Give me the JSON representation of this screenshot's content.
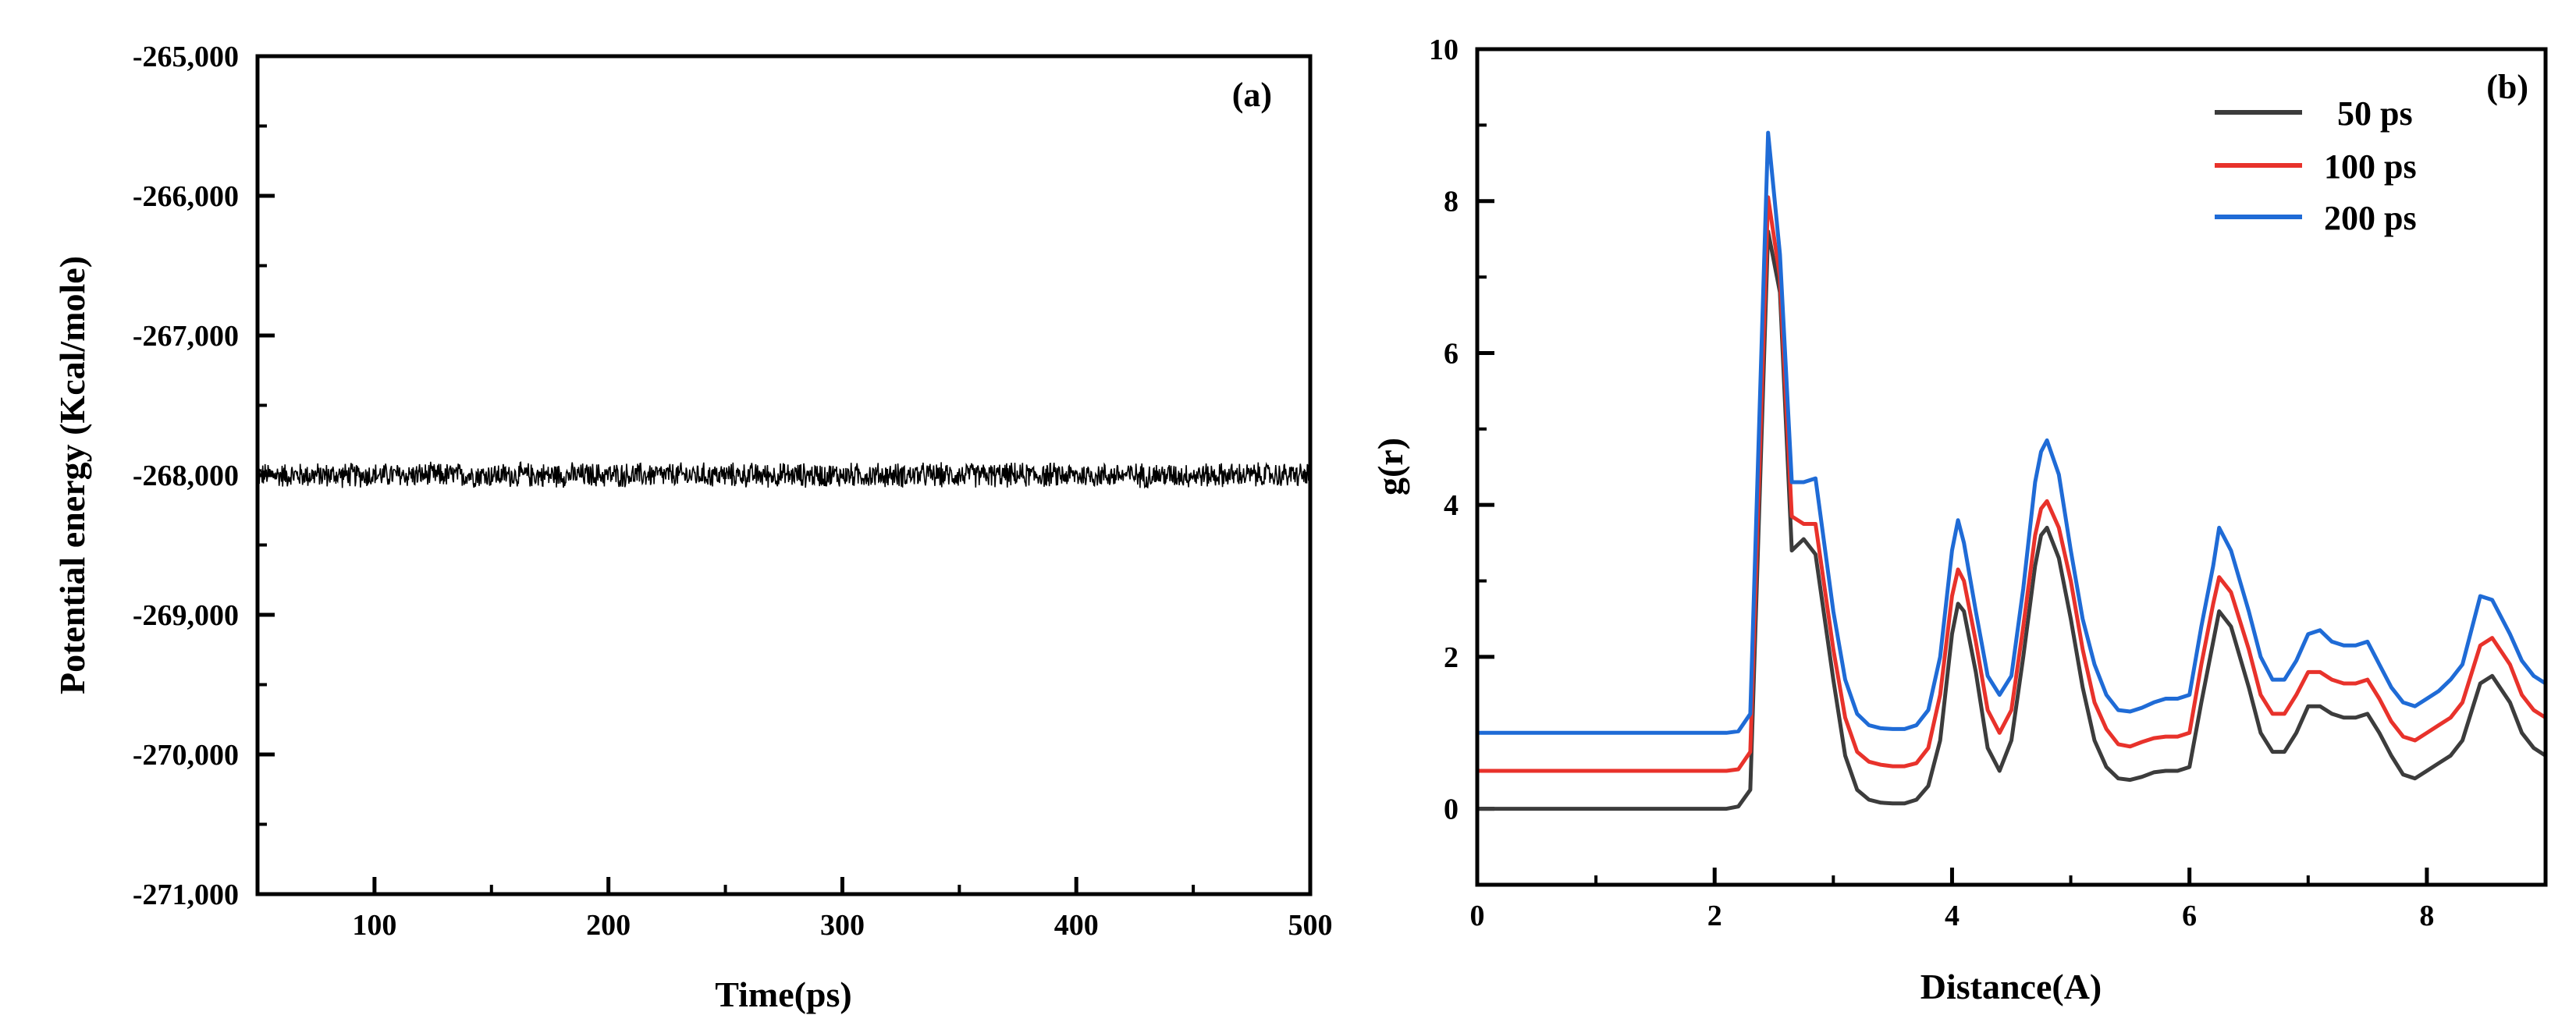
{
  "chart_data": [
    {
      "panel": "(a)",
      "type": "line",
      "xlabel": "Time(ps)",
      "ylabel": "Potential energy (Kcal/mole)",
      "xlim": [
        50,
        500
      ],
      "ylim": [
        -271000,
        -265000
      ],
      "xticks": [
        100,
        200,
        300,
        400,
        500
      ],
      "xtick_labels": [
        "100",
        "200",
        "300",
        "400",
        "500"
      ],
      "yticks": [
        -271000,
        -270000,
        -269000,
        -268000,
        -267000,
        -266000,
        -265000
      ],
      "ytick_labels": [
        "-271,000",
        "-270,000",
        "-269,000",
        "-268,000",
        "-267,000",
        "-266,000",
        "-265,000"
      ],
      "series": [
        {
          "name": "Potential energy",
          "color": "#000000",
          "mean": -268000,
          "fluctuation_amplitude": 100,
          "x_start": 50,
          "x_end": 500,
          "point_count": 1800
        }
      ]
    },
    {
      "panel": "(b)",
      "type": "line",
      "xlabel": "Distance(A)",
      "ylabel": "g(r)",
      "xlim": [
        0,
        9
      ],
      "ylim": [
        -1,
        10
      ],
      "xticks": [
        0,
        2,
        4,
        6,
        8
      ],
      "xtick_labels": [
        "0",
        "2",
        "4",
        "6",
        "8"
      ],
      "yticks": [
        0,
        2,
        4,
        6,
        8,
        10
      ],
      "ytick_labels": [
        "0",
        "2",
        "4",
        "6",
        "8",
        "10"
      ],
      "legend_position": "top-right",
      "x": [
        0,
        2.1,
        2.2,
        2.3,
        2.45,
        2.55,
        2.65,
        2.75,
        2.85,
        3.0,
        3.1,
        3.2,
        3.3,
        3.4,
        3.5,
        3.6,
        3.7,
        3.8,
        3.9,
        4.0,
        4.05,
        4.1,
        4.2,
        4.3,
        4.4,
        4.5,
        4.6,
        4.7,
        4.75,
        4.8,
        4.9,
        5.0,
        5.1,
        5.2,
        5.3,
        5.4,
        5.5,
        5.6,
        5.7,
        5.8,
        5.9,
        6.0,
        6.1,
        6.2,
        6.25,
        6.35,
        6.5,
        6.6,
        6.7,
        6.8,
        6.9,
        7.0,
        7.1,
        7.2,
        7.3,
        7.4,
        7.5,
        7.6,
        7.7,
        7.8,
        7.9,
        8.0,
        8.1,
        8.2,
        8.3,
        8.4,
        8.45,
        8.55,
        8.7,
        8.8,
        8.9,
        9.0
      ],
      "series": [
        {
          "name": "50 ps",
          "color": "#3c3c3c",
          "values": [
            0,
            0,
            0.03,
            0.25,
            7.6,
            6.8,
            3.4,
            3.55,
            3.35,
            1.7,
            0.7,
            0.25,
            0.12,
            0.08,
            0.07,
            0.07,
            0.12,
            0.3,
            0.9,
            2.3,
            2.7,
            2.6,
            1.8,
            0.8,
            0.5,
            0.9,
            2.0,
            3.2,
            3.6,
            3.7,
            3.3,
            2.5,
            1.6,
            0.9,
            0.55,
            0.4,
            0.38,
            0.42,
            0.48,
            0.5,
            0.5,
            0.55,
            1.4,
            2.2,
            2.6,
            2.4,
            1.6,
            1.0,
            0.75,
            0.75,
            1.0,
            1.35,
            1.35,
            1.25,
            1.2,
            1.2,
            1.25,
            1.0,
            0.7,
            0.45,
            0.4,
            0.5,
            0.6,
            0.7,
            0.9,
            1.4,
            1.65,
            1.75,
            1.4,
            1.0,
            0.8,
            0.7
          ]
        },
        {
          "name": "100 ps",
          "color": "#e8322b",
          "values": [
            0.5,
            0.5,
            0.52,
            0.75,
            8.05,
            7.0,
            3.85,
            3.75,
            3.75,
            2.1,
            1.2,
            0.75,
            0.62,
            0.58,
            0.56,
            0.56,
            0.6,
            0.8,
            1.5,
            2.8,
            3.15,
            3.0,
            2.2,
            1.3,
            1.0,
            1.3,
            2.4,
            3.6,
            3.95,
            4.05,
            3.7,
            3.0,
            2.1,
            1.4,
            1.05,
            0.85,
            0.82,
            0.88,
            0.93,
            0.95,
            0.95,
            1.0,
            1.9,
            2.7,
            3.05,
            2.85,
            2.1,
            1.5,
            1.25,
            1.25,
            1.5,
            1.8,
            1.8,
            1.7,
            1.65,
            1.65,
            1.7,
            1.45,
            1.15,
            0.95,
            0.9,
            1.0,
            1.1,
            1.2,
            1.4,
            1.9,
            2.15,
            2.25,
            1.9,
            1.5,
            1.3,
            1.2
          ]
        },
        {
          "name": "200 ps",
          "color": "#1f6bd6",
          "values": [
            1.0,
            1.0,
            1.02,
            1.25,
            8.9,
            7.3,
            4.3,
            4.3,
            4.35,
            2.6,
            1.7,
            1.25,
            1.1,
            1.06,
            1.05,
            1.05,
            1.1,
            1.3,
            2.0,
            3.4,
            3.8,
            3.5,
            2.6,
            1.75,
            1.5,
            1.75,
            2.9,
            4.3,
            4.7,
            4.85,
            4.4,
            3.4,
            2.5,
            1.9,
            1.5,
            1.3,
            1.28,
            1.33,
            1.4,
            1.45,
            1.45,
            1.5,
            2.4,
            3.2,
            3.7,
            3.4,
            2.6,
            2.0,
            1.7,
            1.7,
            1.95,
            2.3,
            2.35,
            2.2,
            2.15,
            2.15,
            2.2,
            1.9,
            1.6,
            1.4,
            1.35,
            1.45,
            1.55,
            1.7,
            1.9,
            2.5,
            2.8,
            2.75,
            2.3,
            1.95,
            1.75,
            1.65
          ]
        }
      ]
    }
  ]
}
